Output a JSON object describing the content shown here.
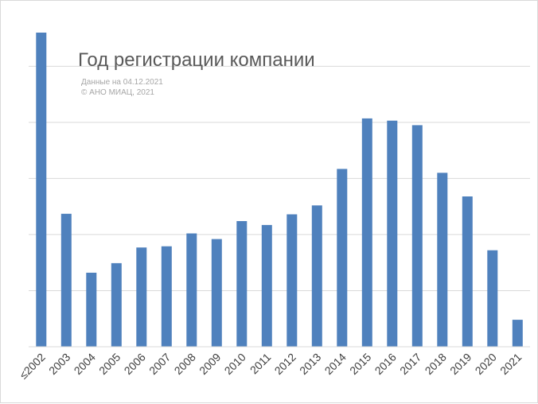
{
  "chart_data": {
    "type": "bar",
    "title": "Год регистрации компании",
    "subtitle_lines": [
      "Данные на 04.12.2021",
      "© АНО МИАЦ, 2021"
    ],
    "categories": [
      "≤2002",
      "2003",
      "2004",
      "2005",
      "2006",
      "2007",
      "2008",
      "2009",
      "2010",
      "2011",
      "2012",
      "2013",
      "2014",
      "2015",
      "2016",
      "2017",
      "2018",
      "2019",
      "2020",
      "2021"
    ],
    "values": [
      5.6,
      2.37,
      1.32,
      1.49,
      1.77,
      1.79,
      2.02,
      1.92,
      2.24,
      2.17,
      2.36,
      2.52,
      3.17,
      4.07,
      4.03,
      3.95,
      3.1,
      2.68,
      1.72,
      0.48
    ],
    "ylim": [
      0,
      5.6
    ],
    "y_gridlines": [
      1,
      2,
      3,
      4,
      5
    ],
    "y_tick_labels_visible": false,
    "grid": true,
    "legend": "none",
    "bar_color": "#4f81bd"
  }
}
